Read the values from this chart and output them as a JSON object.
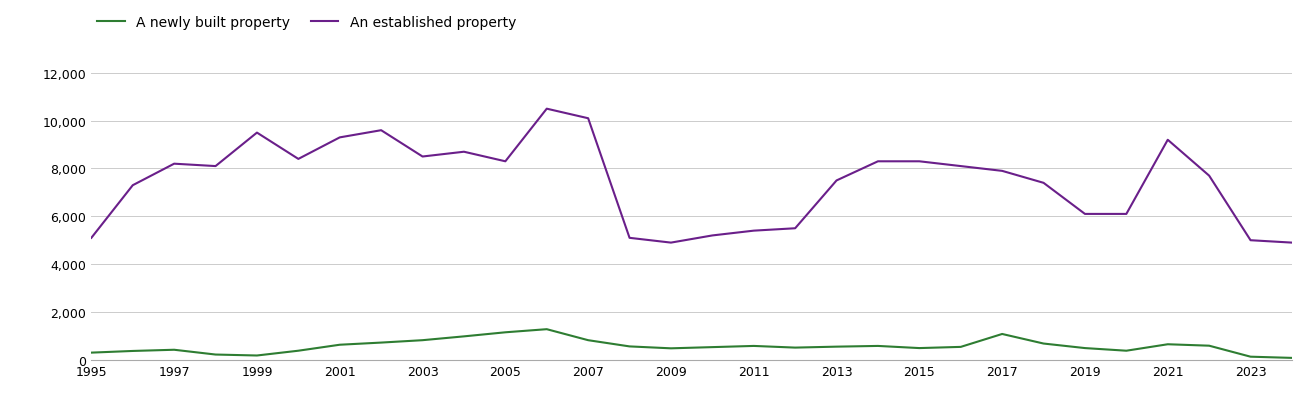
{
  "years": [
    1995,
    1996,
    1997,
    1998,
    1999,
    2000,
    2001,
    2002,
    2003,
    2004,
    2005,
    2006,
    2007,
    2008,
    2009,
    2010,
    2011,
    2012,
    2013,
    2014,
    2015,
    2016,
    2017,
    2018,
    2019,
    2020,
    2021,
    2022,
    2023,
    2024
  ],
  "new_homes": [
    300,
    370,
    420,
    220,
    180,
    380,
    630,
    720,
    820,
    980,
    1150,
    1280,
    820,
    560,
    480,
    530,
    580,
    510,
    550,
    580,
    490,
    540,
    1080,
    680,
    490,
    380,
    650,
    590,
    130,
    80
  ],
  "established_homes": [
    5100,
    7300,
    8200,
    8100,
    9500,
    8400,
    9300,
    9600,
    8500,
    8700,
    8300,
    10500,
    10100,
    5100,
    4900,
    5200,
    5400,
    5500,
    7500,
    8300,
    8300,
    8100,
    7900,
    7400,
    6100,
    6100,
    9200,
    7700,
    5000,
    4900
  ],
  "new_homes_color": "#2e7d32",
  "established_homes_color": "#6a1f8a",
  "new_homes_label": "A newly built property",
  "established_homes_label": "An established property",
  "ylim": [
    0,
    12000
  ],
  "yticks": [
    0,
    2000,
    4000,
    6000,
    8000,
    10000,
    12000
  ],
  "background_color": "#ffffff",
  "grid_color": "#cccccc",
  "line_width": 1.5
}
